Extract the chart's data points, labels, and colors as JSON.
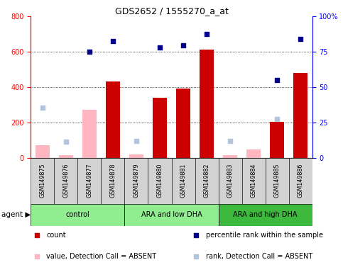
{
  "title": "GDS2652 / 1555270_a_at",
  "samples": [
    "GSM149875",
    "GSM149876",
    "GSM149877",
    "GSM149878",
    "GSM149879",
    "GSM149880",
    "GSM149881",
    "GSM149882",
    "GSM149883",
    "GSM149884",
    "GSM149885",
    "GSM149886"
  ],
  "count_values": [
    null,
    null,
    null,
    430,
    null,
    340,
    390,
    610,
    null,
    null,
    205,
    480
  ],
  "absent_value": [
    70,
    15,
    270,
    null,
    20,
    null,
    null,
    null,
    15,
    45,
    null,
    null
  ],
  "percentile_rank": [
    null,
    null,
    600,
    660,
    null,
    625,
    635,
    700,
    null,
    null,
    440,
    670
  ],
  "absent_rank": [
    285,
    90,
    null,
    null,
    95,
    null,
    null,
    null,
    95,
    null,
    220,
    null
  ],
  "ylim_left": [
    0,
    800
  ],
  "ylim_right": [
    0,
    100
  ],
  "yticks_left": [
    0,
    200,
    400,
    600,
    800
  ],
  "yticks_right": [
    0,
    25,
    50,
    75,
    100
  ],
  "bar_color_present": "#cc0000",
  "bar_color_absent": "#ffb6c1",
  "dot_color_present": "#00008b",
  "dot_color_absent": "#b0c4de",
  "group_bg_light": "#90ee90",
  "group_bg_dark": "#3dba3d",
  "sample_bg": "#d3d3d3",
  "group_labels": [
    "control",
    "ARA and low DHA",
    "ARA and high DHA"
  ],
  "group_ranges": [
    [
      0,
      3
    ],
    [
      4,
      7
    ],
    [
      8,
      11
    ]
  ],
  "group_colors": [
    "#90ee90",
    "#90ee90",
    "#3dba3d"
  ],
  "legend_items": [
    {
      "color": "#cc0000",
      "label": "count",
      "marker": "s"
    },
    {
      "color": "#00008b",
      "label": "percentile rank within the sample",
      "marker": "s"
    },
    {
      "color": "#ffb6c1",
      "label": "value, Detection Call = ABSENT",
      "marker": "s"
    },
    {
      "color": "#b0c4de",
      "label": "rank, Detection Call = ABSENT",
      "marker": "s"
    }
  ]
}
